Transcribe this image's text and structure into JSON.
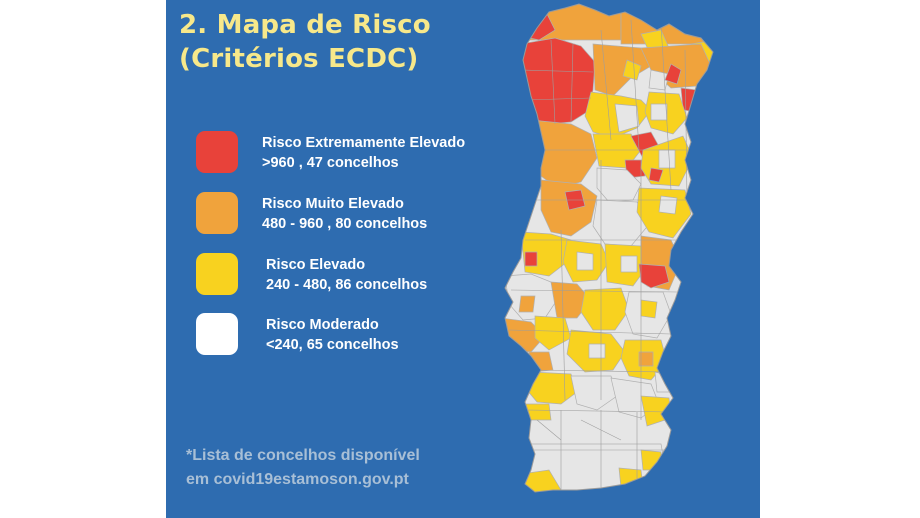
{
  "title": {
    "line1": "2. Mapa de Risco",
    "line2": "(Critérios ECDC)"
  },
  "legend": [
    {
      "label": "Risco Extremamente Elevado",
      "detail": ">960 , 47 concelhos",
      "color": "#e8423a"
    },
    {
      "label": "Risco Muito Elevado",
      "detail": "480 - 960 , 80 concelhos",
      "color": "#f0a33c"
    },
    {
      "label": "Risco Elevado",
      "detail": "240 - 480, 86 concelhos",
      "color": "#f8d21f"
    },
    {
      "label": "Risco Moderado",
      "detail": "<240, 65 concelhos",
      "color": "#ffffff"
    }
  ],
  "footnote": {
    "line1": "*Lista de concelhos disponível",
    "line2": "em covid19estamoson.gov.pt"
  },
  "colors": {
    "background": "#2e6cb0",
    "title": "#f7e88a",
    "footnote": "#a8bfd6",
    "map_border": "#b0b0b0",
    "map_moderate": "#e6e6e6"
  }
}
